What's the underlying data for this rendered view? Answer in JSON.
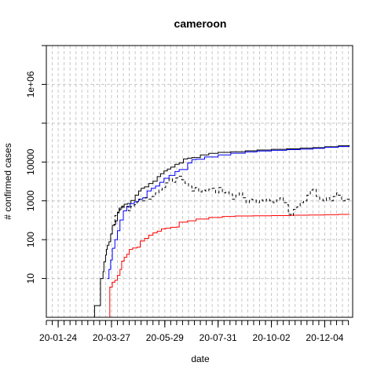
{
  "chart_data": {
    "type": "line",
    "title": "cameroon",
    "xlabel": "date",
    "ylabel": "# confirmed cases",
    "x_axis": {
      "type": "date",
      "range": [
        "2020-01-10",
        "2021-01-06"
      ],
      "labeled_ticks": [
        {
          "date": "2020-01-24",
          "label": "20-01-24"
        },
        {
          "date": "2020-03-27",
          "label": "20-03-27"
        },
        {
          "date": "2020-05-29",
          "label": "20-05-29"
        },
        {
          "date": "2020-07-31",
          "label": "20-07-31"
        },
        {
          "date": "2020-10-02",
          "label": "20-10-02"
        },
        {
          "date": "2020-12-04",
          "label": "20-12-04"
        }
      ],
      "minor_tick_interval_days": 7
    },
    "y_axis": {
      "scale": "log",
      "range": [
        1,
        10000000
      ],
      "labeled_ticks": [
        {
          "value": 10,
          "label": "10"
        },
        {
          "value": 100,
          "label": "100"
        },
        {
          "value": 1000,
          "label": "1000"
        },
        {
          "value": 10000,
          "label": "10000"
        },
        {
          "value": 1000000,
          "label": "1e+06"
        }
      ],
      "unlabeled_ticks": [
        100000,
        10000000
      ]
    },
    "grid": true,
    "legend": "none",
    "series": [
      {
        "color": "#000000",
        "dash": "solid",
        "points": [
          [
            "2020-03-06",
            1
          ],
          [
            "2020-03-07",
            2
          ],
          [
            "2020-03-13",
            2
          ],
          [
            "2020-03-14",
            10
          ],
          [
            "2020-03-17",
            15
          ],
          [
            "2020-03-18",
            27
          ],
          [
            "2020-03-20",
            40
          ],
          [
            "2020-03-21",
            56
          ],
          [
            "2020-03-22",
            72
          ],
          [
            "2020-03-24",
            88
          ],
          [
            "2020-03-26",
            140
          ],
          [
            "2020-03-28",
            233
          ],
          [
            "2020-03-30",
            250
          ],
          [
            "2020-04-01",
            306
          ],
          [
            "2020-04-03",
            509
          ],
          [
            "2020-04-05",
            650
          ],
          [
            "2020-04-08",
            730
          ],
          [
            "2020-04-11",
            820
          ],
          [
            "2020-04-15",
            855
          ],
          [
            "2020-04-19",
            1020
          ],
          [
            "2020-04-24",
            1400
          ],
          [
            "2020-04-28",
            1800
          ],
          [
            "2020-05-01",
            2100
          ],
          [
            "2020-05-05",
            2300
          ],
          [
            "2020-05-10",
            2800
          ],
          [
            "2020-05-15",
            3200
          ],
          [
            "2020-05-20",
            4200
          ],
          [
            "2020-05-24",
            5000
          ],
          [
            "2020-05-28",
            5900
          ],
          [
            "2020-06-01",
            6600
          ],
          [
            "2020-06-05",
            7400
          ],
          [
            "2020-06-10",
            8700
          ],
          [
            "2020-06-15",
            9500
          ],
          [
            "2020-06-20",
            12000
          ],
          [
            "2020-06-25",
            12600
          ],
          [
            "2020-06-30",
            13000
          ],
          [
            "2020-07-10",
            15200
          ],
          [
            "2020-07-20",
            16700
          ],
          [
            "2020-07-31",
            17700
          ],
          [
            "2020-08-15",
            18400
          ],
          [
            "2020-09-01",
            19500
          ],
          [
            "2020-09-15",
            20400
          ],
          [
            "2020-10-02",
            21200
          ],
          [
            "2020-10-20",
            21800
          ],
          [
            "2020-11-05",
            22800
          ],
          [
            "2020-11-20",
            23500
          ],
          [
            "2020-12-04",
            24700
          ],
          [
            "2020-12-20",
            26200
          ],
          [
            "2021-01-02",
            27000
          ]
        ]
      },
      {
        "color": "#0000ff",
        "dash": "solid",
        "points": [
          [
            "2020-03-22",
            10
          ],
          [
            "2020-03-24",
            17
          ],
          [
            "2020-03-26",
            30
          ],
          [
            "2020-03-28",
            60
          ],
          [
            "2020-03-31",
            100
          ],
          [
            "2020-04-03",
            170
          ],
          [
            "2020-04-06",
            320
          ],
          [
            "2020-04-10",
            550
          ],
          [
            "2020-04-14",
            700
          ],
          [
            "2020-04-18",
            850
          ],
          [
            "2020-04-23",
            950
          ],
          [
            "2020-04-28",
            1100
          ],
          [
            "2020-05-03",
            1200
          ],
          [
            "2020-05-08",
            1800
          ],
          [
            "2020-05-13",
            2100
          ],
          [
            "2020-05-18",
            2400
          ],
          [
            "2020-05-23",
            3000
          ],
          [
            "2020-05-28",
            3800
          ],
          [
            "2020-06-03",
            4500
          ],
          [
            "2020-06-10",
            5700
          ],
          [
            "2020-06-15",
            6400
          ],
          [
            "2020-06-20",
            6400
          ],
          [
            "2020-06-25",
            9500
          ],
          [
            "2020-06-30",
            11500
          ],
          [
            "2020-07-05",
            11800
          ],
          [
            "2020-07-15",
            13500
          ],
          [
            "2020-07-31",
            15200
          ],
          [
            "2020-08-15",
            16800
          ],
          [
            "2020-09-01",
            18200
          ],
          [
            "2020-09-15",
            19200
          ],
          [
            "2020-10-02",
            20000
          ],
          [
            "2020-10-20",
            20800
          ],
          [
            "2020-11-05",
            21500
          ],
          [
            "2020-11-20",
            22500
          ],
          [
            "2020-12-04",
            23800
          ],
          [
            "2020-12-20",
            25000
          ],
          [
            "2021-01-02",
            25500
          ]
        ]
      },
      {
        "color": "#ff0000",
        "dash": "solid",
        "points": [
          [
            "2020-03-24",
            1
          ],
          [
            "2020-03-25",
            6
          ],
          [
            "2020-03-28",
            8
          ],
          [
            "2020-03-31",
            9
          ],
          [
            "2020-04-03",
            12
          ],
          [
            "2020-04-06",
            17
          ],
          [
            "2020-04-08",
            28
          ],
          [
            "2020-04-11",
            35
          ],
          [
            "2020-04-14",
            42
          ],
          [
            "2020-04-17",
            56
          ],
          [
            "2020-04-21",
            61
          ],
          [
            "2020-04-26",
            64
          ],
          [
            "2020-04-30",
            92
          ],
          [
            "2020-05-05",
            108
          ],
          [
            "2020-05-10",
            131
          ],
          [
            "2020-05-15",
            150
          ],
          [
            "2020-05-20",
            165
          ],
          [
            "2020-05-25",
            190
          ],
          [
            "2020-05-30",
            197
          ],
          [
            "2020-06-05",
            209
          ],
          [
            "2020-06-12",
            212
          ],
          [
            "2020-06-15",
            282
          ],
          [
            "2020-06-25",
            306
          ],
          [
            "2020-07-05",
            340
          ],
          [
            "2020-07-20",
            373
          ],
          [
            "2020-08-05",
            395
          ],
          [
            "2020-08-20",
            408
          ],
          [
            "2020-09-10",
            412
          ],
          [
            "2020-10-02",
            418
          ],
          [
            "2020-10-25",
            426
          ],
          [
            "2020-11-15",
            431
          ],
          [
            "2020-12-04",
            440
          ],
          [
            "2020-12-20",
            448
          ],
          [
            "2021-01-02",
            455
          ]
        ]
      },
      {
        "color": "#000000",
        "dash": "dashed",
        "points": [
          [
            "2020-03-28",
            233
          ],
          [
            "2020-03-31",
            420
          ],
          [
            "2020-04-03",
            490
          ],
          [
            "2020-04-06",
            600
          ],
          [
            "2020-04-09",
            680
          ],
          [
            "2020-04-12",
            720
          ],
          [
            "2020-04-16",
            560
          ],
          [
            "2020-04-19",
            720
          ],
          [
            "2020-04-23",
            800
          ],
          [
            "2020-04-26",
            950
          ],
          [
            "2020-04-29",
            1100
          ],
          [
            "2020-05-02",
            1000
          ],
          [
            "2020-05-06",
            1200
          ],
          [
            "2020-05-10",
            1100
          ],
          [
            "2020-05-14",
            1300
          ],
          [
            "2020-05-18",
            1600
          ],
          [
            "2020-05-22",
            1900
          ],
          [
            "2020-05-26",
            2200
          ],
          [
            "2020-05-30",
            2900
          ],
          [
            "2020-06-03",
            3700
          ],
          [
            "2020-06-07",
            3000
          ],
          [
            "2020-06-11",
            3900
          ],
          [
            "2020-06-15",
            4300
          ],
          [
            "2020-06-18",
            3500
          ],
          [
            "2020-06-22",
            2800
          ],
          [
            "2020-06-26",
            2400
          ],
          [
            "2020-06-30",
            1800
          ],
          [
            "2020-07-04",
            2200
          ],
          [
            "2020-07-08",
            1700
          ],
          [
            "2020-07-12",
            1900
          ],
          [
            "2020-07-16",
            1800
          ],
          [
            "2020-07-20",
            2000
          ],
          [
            "2020-07-24",
            2100
          ],
          [
            "2020-07-28",
            1600
          ],
          [
            "2020-08-01",
            2200
          ],
          [
            "2020-08-05",
            1600
          ],
          [
            "2020-08-09",
            1700
          ],
          [
            "2020-08-13",
            1500
          ],
          [
            "2020-08-17",
            1100
          ],
          [
            "2020-08-21",
            1400
          ],
          [
            "2020-08-25",
            1600
          ],
          [
            "2020-08-29",
            1200
          ],
          [
            "2020-09-02",
            900
          ],
          [
            "2020-09-06",
            1100
          ],
          [
            "2020-09-10",
            1050
          ],
          [
            "2020-09-14",
            900
          ],
          [
            "2020-09-18",
            1050
          ],
          [
            "2020-09-22",
            980
          ],
          [
            "2020-09-26",
            1100
          ],
          [
            "2020-09-30",
            1000
          ],
          [
            "2020-10-04",
            900
          ],
          [
            "2020-10-08",
            1050
          ],
          [
            "2020-10-12",
            1200
          ],
          [
            "2020-10-16",
            900
          ],
          [
            "2020-10-20",
            800
          ],
          [
            "2020-10-22",
            450
          ],
          [
            "2020-10-25",
            420
          ],
          [
            "2020-10-28",
            600
          ],
          [
            "2020-11-01",
            700
          ],
          [
            "2020-11-05",
            900
          ],
          [
            "2020-11-09",
            1000
          ],
          [
            "2020-11-13",
            1400
          ],
          [
            "2020-11-17",
            1900
          ],
          [
            "2020-11-20",
            2000
          ],
          [
            "2020-11-24",
            1300
          ],
          [
            "2020-11-28",
            1100
          ],
          [
            "2020-12-02",
            1000
          ],
          [
            "2020-12-06",
            1200
          ],
          [
            "2020-12-10",
            1000
          ],
          [
            "2020-12-14",
            1300
          ],
          [
            "2020-12-18",
            1600
          ],
          [
            "2020-12-20",
            1400
          ],
          [
            "2020-12-24",
            1000
          ],
          [
            "2020-12-28",
            1100
          ],
          [
            "2021-01-02",
            1000
          ]
        ]
      }
    ]
  }
}
